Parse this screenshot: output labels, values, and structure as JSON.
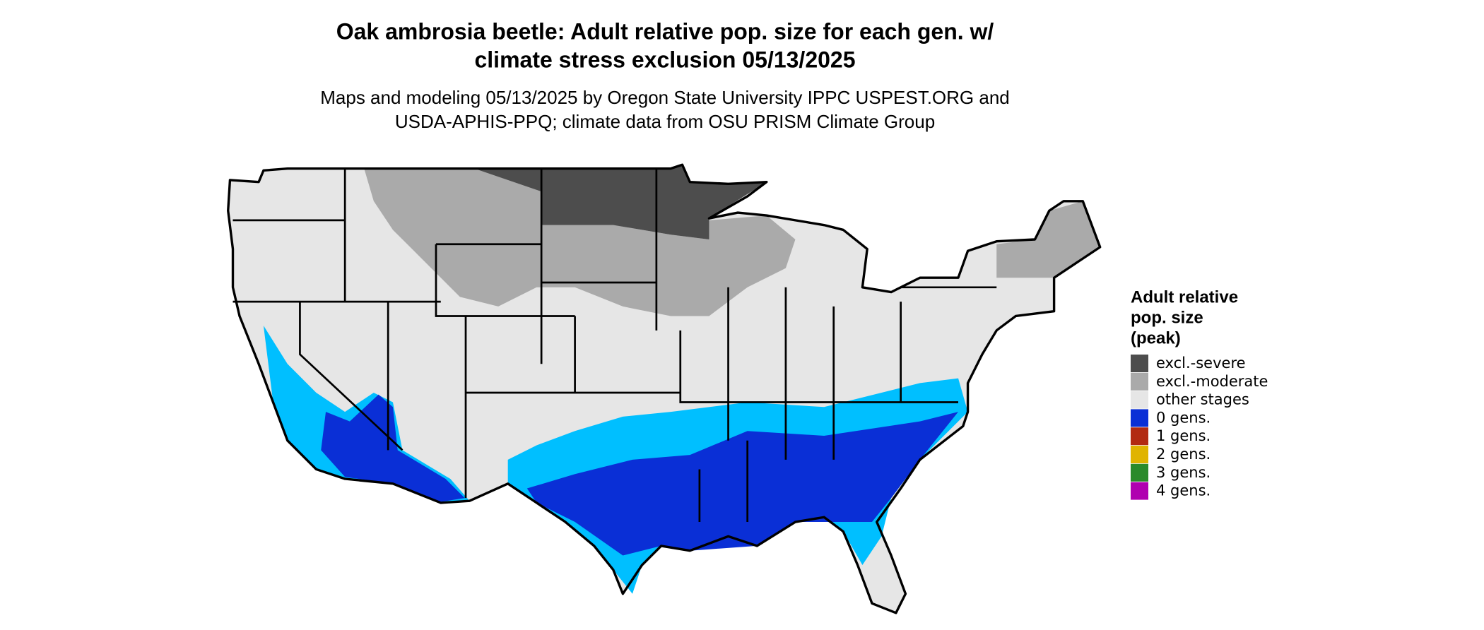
{
  "title": [
    "Oak ambrosia beetle: Adult relative pop. size for each gen. w/",
    "climate stress exclusion 05/13/2025"
  ],
  "subtitle": [
    "Maps and modeling 05/13/2025 by Oregon State University IPPC USPEST.ORG and",
    "USDA-APHIS-PPQ; climate data from OSU PRISM Climate Group"
  ],
  "legend": {
    "title": [
      "Adult relative",
      "pop. size",
      "(peak)"
    ],
    "items": [
      {
        "label": "excl.-severe",
        "color": "#4d4d4d"
      },
      {
        "label": "excl.-moderate",
        "color": "#aaaaaa"
      },
      {
        "label": "other stages",
        "color": "#e6e6e6"
      },
      {
        "label": "0 gens.",
        "color": "#0a2fd6"
      },
      {
        "label": "1 gens.",
        "color": "#b22a12"
      },
      {
        "label": "2 gens.",
        "color": "#e0b400"
      },
      {
        "label": "3 gens.",
        "color": "#2a8a2a"
      },
      {
        "label": "4 gens.",
        "color": "#b000b0"
      }
    ]
  }
}
